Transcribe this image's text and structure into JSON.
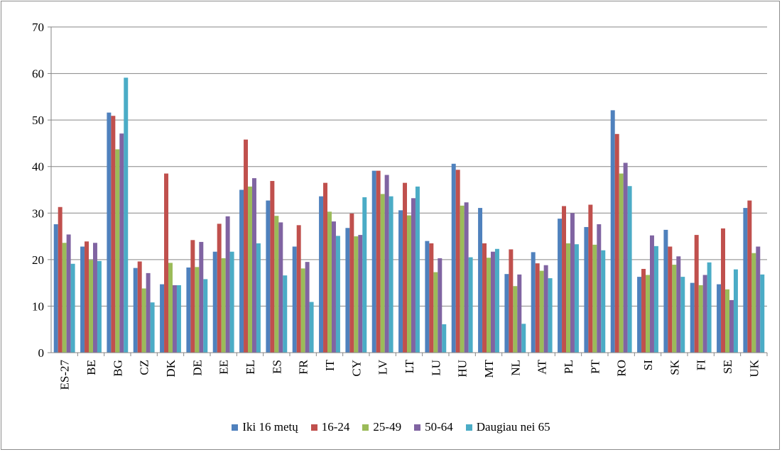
{
  "chart_data": {
    "type": "bar",
    "title": "",
    "xlabel": "",
    "ylabel": "",
    "ylim": [
      0,
      70
    ],
    "yticks": [
      "0",
      "10",
      "20",
      "30",
      "40",
      "50",
      "60",
      "70"
    ],
    "grid": true,
    "legend_position": "bottom",
    "categories": [
      "ES-27",
      "BE",
      "BG",
      "CZ",
      "DK",
      "DE",
      "EE",
      "EL",
      "ES",
      "FR",
      "IT",
      "CY",
      "LV",
      "LT",
      "LU",
      "HU",
      "MT",
      "NL",
      "AT",
      "PL",
      "PT",
      "RO",
      "SI",
      "SK",
      "FI",
      "SE",
      "UK"
    ],
    "series": [
      {
        "name": "Iki 16 metų",
        "color": "#4f81bd",
        "values": [
          27.6,
          22.8,
          51.6,
          18.2,
          14.7,
          18.3,
          21.7,
          35.0,
          32.7,
          22.8,
          33.6,
          26.8,
          39.1,
          30.6,
          24.0,
          40.6,
          31.1,
          16.9,
          21.6,
          28.8,
          27.0,
          52.1,
          16.3,
          26.4,
          15.0,
          14.7,
          31.1
        ]
      },
      {
        "name": "16-24",
        "color": "#c0504d",
        "values": [
          31.3,
          23.9,
          50.9,
          19.6,
          38.5,
          24.2,
          27.7,
          45.8,
          36.9,
          27.4,
          36.5,
          29.9,
          39.1,
          36.5,
          23.5,
          39.3,
          23.5,
          22.2,
          19.2,
          31.5,
          31.8,
          47.0,
          18.0,
          22.8,
          25.3,
          26.7,
          32.7
        ]
      },
      {
        "name": "25-49",
        "color": "#9bbb59",
        "values": [
          23.6,
          19.9,
          43.7,
          13.8,
          19.3,
          18.4,
          20.3,
          35.7,
          29.4,
          18.1,
          30.3,
          25.0,
          34.1,
          29.5,
          17.3,
          31.6,
          20.4,
          14.3,
          17.6,
          23.5,
          23.2,
          38.5,
          16.7,
          18.9,
          14.5,
          13.6,
          21.4
        ]
      },
      {
        "name": "50-64",
        "color": "#8064a2",
        "values": [
          25.4,
          23.6,
          47.1,
          17.1,
          14.5,
          23.8,
          29.3,
          37.5,
          28.0,
          19.5,
          28.2,
          25.3,
          38.2,
          33.2,
          20.3,
          32.3,
          21.7,
          16.8,
          18.8,
          30.0,
          27.6,
          40.8,
          25.2,
          20.7,
          16.7,
          11.3,
          22.8
        ]
      },
      {
        "name": "Daugiau nei 65",
        "color": "#4bacc6",
        "values": [
          19.1,
          19.7,
          59.1,
          10.8,
          14.5,
          15.8,
          21.7,
          23.5,
          16.6,
          10.9,
          25.1,
          33.4,
          33.6,
          35.7,
          6.1,
          20.5,
          22.3,
          6.2,
          16.0,
          23.3,
          22.0,
          35.8,
          22.9,
          16.3,
          19.4,
          17.9,
          16.8
        ]
      }
    ]
  }
}
